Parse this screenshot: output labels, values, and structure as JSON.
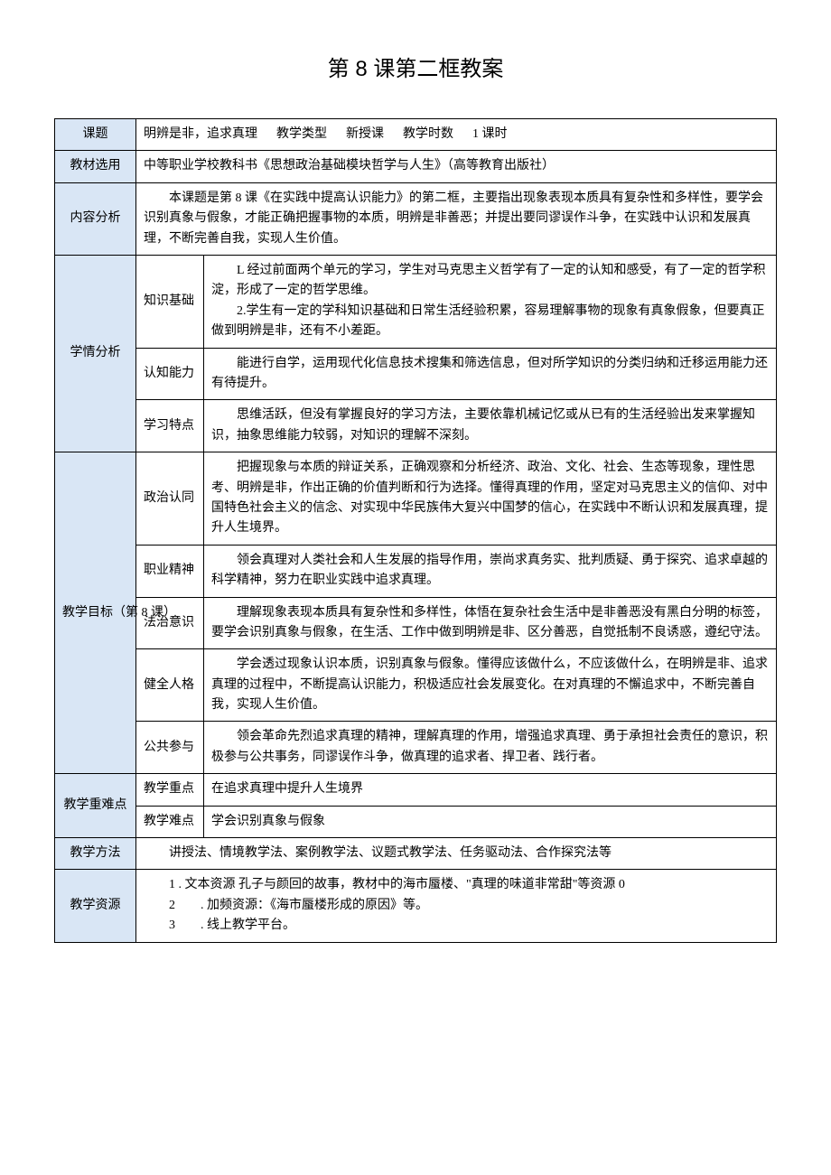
{
  "title": "第 8 课第二框教案",
  "labels": {
    "keti": "课题",
    "jiaoxueleixing": "教学类型",
    "jiaoxueshishu": "教学时数",
    "jiaocaixuanyong": "教材选用",
    "neirongfenxi": "内容分析",
    "xueqingfenxi": "学情分析",
    "zhishijichu": "知识基础",
    "renzhinengli": "认知能力",
    "xuexitedian": "学习特点",
    "jiaoxuemubiao": "教学目标（第 8 课）",
    "zhengzhirentong": "政治认同",
    "zhiyejingshen": "职业精神",
    "fazhiyishi": "法治意识",
    "jianquanrenge": "健全人格",
    "gonggongcanyu": "公共参与",
    "jiaoxuezhongnandian": "教学重难点",
    "jiaoxuezhongdian": "教学重点",
    "jiaoxuenandian": "教学难点",
    "jiaoxuefangfa": "教学方法",
    "jiaoxueziyuan": "教学资源"
  },
  "row1": {
    "keti_value": "明辨是非，追求真理",
    "leixing_value": "新授课",
    "shishu_value": "1 课时"
  },
  "jiaocai": "中等职业学校教科书《思想政治基础模块哲学与人生》（高等教育出版社）",
  "neirong": "　　本课题是第 8 课《在实践中提高认识能力》的第二框，主要指出现象表现本质具有复杂性和多样性，要学会识别真象与假象，才能正确把握事物的本质，明辨是非善恶；并提出要同谬误作斗争，在实践中认识和发展真理，不断完善自我，实现人生价值。",
  "zhishi": "　　L 经过前面两个单元的学习，学生对马克思主义哲学有了一定的认知和感受，有了一定的哲学积淀，形成了一定的哲学思维。\n　　2.学生有一定的学科知识基础和日常生活经验积累，容易理解事物的现象有真象假象，但要真正做到明辨是非，还有不小差距。",
  "renzhi": "　　能进行自学，运用现代化信息技术搜集和筛选信息，但对所学知识的分类归纳和迁移运用能力还有待提升。",
  "xuexi": "　　思维活跃，但没有掌握良好的学习方法，主要依靠机械记忆或从已有的生活经验出发来掌握知识，抽象思维能力较弱，对知识的理解不深刻。",
  "zhengzhi": "　　把握现象与本质的辩证关系，正确观察和分析经济、政治、文化、社会、生态等现象，理性思考、明辨是非，作出正确的价值判断和行为选择。懂得真理的作用，坚定对马克思主义的信仰、对中国特色社会主义的信念、对实现中华民族伟大复兴中国梦的信心，在实践中不断认识和发展真理，提升人生境界。",
  "zhiye": "　　领会真理对人类社会和人生发展的指导作用，崇尚求真务实、批判质疑、勇于探究、追求卓越的科学精神，努力在职业实践中追求真理。",
  "fazhi": "　　理解现象表现本质具有复杂性和多样性，体悟在复杂社会生活中是非善恶没有黑白分明的标签，要学会识别真象与假象，在生活、工作中做到明辨是非、区分善恶，自觉抵制不良诱惑，遵纪守法。",
  "jianquan": "　　学会透过现象认识本质，识别真象与假象。懂得应该做什么，不应该做什么，在明辨是非、追求真理的过程中，不断提高认识能力，积极适应社会发展变化。在对真理的不懈追求中，不断完善自我，实现人生价值。",
  "gonggong": "　　领会革命先烈追求真理的精神，理解真理的作用，增强追求真理、勇于承担社会责任的意识，积极参与公共事务，同谬误作斗争，做真理的追求者、捍卫者、践行者。",
  "zhongdian": "在追求真理中提升人生境界",
  "nandian": "学会识别真象与假象",
  "fangfa": "　　讲授法、情境教学法、案例教学法、议题式教学法、任务驱动法、合作探究法等",
  "ziyuan": "　　1 . 文本资源 孔子与颜回的故事，教材中的海市蜃楼、\"真理的味道非常甜\"等资源 0\n　　2　　. 加频资源：《海市蜃楼形成的原因》等。\n　　3　　. 线上教学平台。"
}
